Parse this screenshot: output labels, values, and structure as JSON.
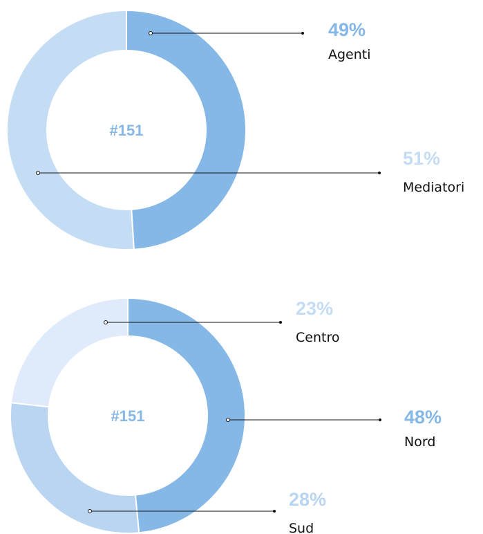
{
  "chart_data": [
    {
      "type": "donut",
      "center_label": "#151",
      "categories": [
        "Agenti",
        "Mediatori"
      ],
      "values": [
        49,
        51
      ],
      "value_labels": [
        "49%",
        "51%"
      ],
      "colors": [
        "#85b8e6",
        "#c5ddf4"
      ]
    },
    {
      "type": "donut",
      "center_label": "#151",
      "categories": [
        "Nord",
        "Sud",
        "Centro"
      ],
      "values": [
        48,
        28,
        23
      ],
      "value_labels": [
        "48%",
        "28%",
        "23%"
      ],
      "colors": [
        "#85b8e6",
        "#b9d5f1",
        "#dfeafa"
      ]
    }
  ]
}
